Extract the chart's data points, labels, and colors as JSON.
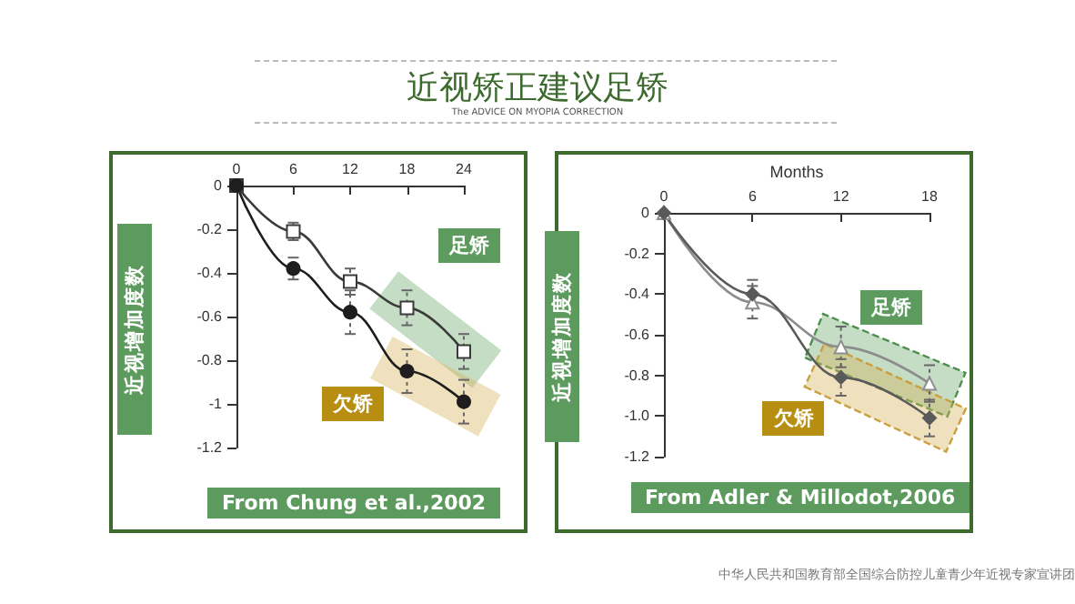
{
  "chart_data": [
    {
      "type": "line",
      "title": "近视矫正建议足矫",
      "subtitle": "The ADVICE ON MYOPIA CORRECTION",
      "ylabel": "近视增加度数",
      "x": [
        0,
        6,
        12,
        18,
        24
      ],
      "xlim": [
        0,
        24
      ],
      "xticks": [
        0,
        6,
        12,
        18,
        24
      ],
      "ylim": [
        -1.2,
        0
      ],
      "yticks": [
        0,
        -0.2,
        -0.4,
        -0.6,
        -0.8,
        -1,
        -1.2
      ],
      "series": [
        {
          "name": "足矫",
          "color": "#3a3a3a",
          "marker": "square",
          "values": [
            0,
            -0.21,
            -0.44,
            -0.56,
            -0.76
          ],
          "errors": [
            null,
            0.04,
            0.06,
            0.08,
            0.08
          ]
        },
        {
          "name": "欠矫",
          "color": "#1e1e1e",
          "marker": "circle",
          "values": [
            0,
            -0.38,
            -0.58,
            -0.85,
            -0.99
          ],
          "errors": [
            null,
            0.05,
            0.1,
            0.1,
            0.1
          ]
        }
      ],
      "annotations": [
        "From Chung et al.,2002"
      ]
    },
    {
      "type": "line",
      "xlabel": "Months",
      "ylabel": "近视增加度数",
      "x": [
        0,
        6,
        12,
        18
      ],
      "xlim": [
        0,
        18
      ],
      "xticks": [
        0,
        6,
        12,
        18
      ],
      "ylim": [
        -1.2,
        0
      ],
      "yticks": [
        0,
        -0.2,
        -0.4,
        -0.6,
        -0.8,
        {
          "value": -1,
          "label": "-1.0"
        },
        -1.2
      ],
      "series": [
        {
          "name": "足矫",
          "color": "#8c8c8c",
          "marker": "triangle",
          "values": [
            0,
            -0.44,
            -0.66,
            -0.84
          ],
          "errors": [
            null,
            0.08,
            0.1,
            0.09
          ]
        },
        {
          "name": "欠矫",
          "color": "#5a5a5a",
          "marker": "diamond",
          "values": [
            0,
            -0.4,
            -0.81,
            -1.01
          ],
          "errors": [
            null,
            0.07,
            0.09,
            0.09
          ]
        }
      ],
      "annotations": [
        "From Adler & Millodot,2006",
        "中华人民共和国教育部全国综合防控儿童青少年近视专家宣讲团"
      ]
    }
  ]
}
